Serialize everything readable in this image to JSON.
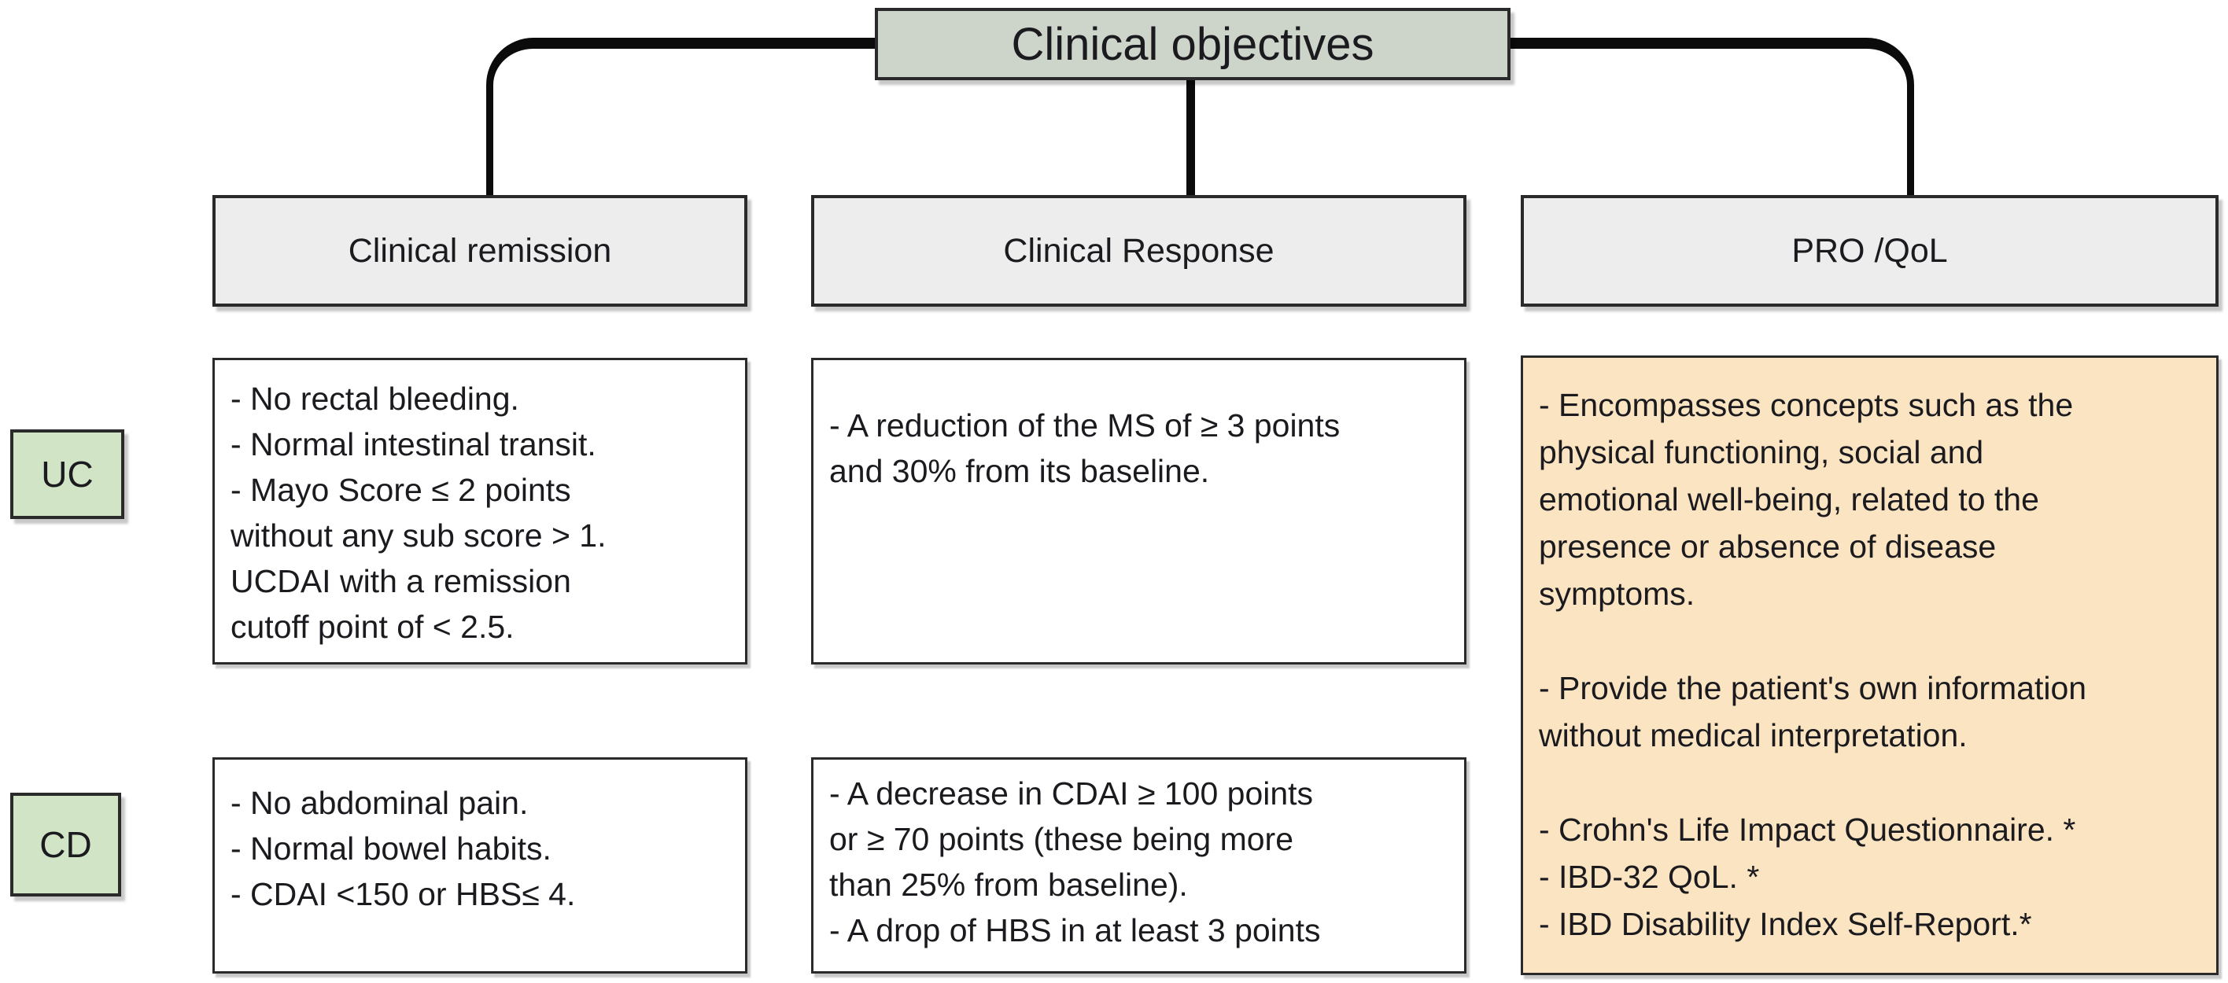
{
  "title": "Clinical objectives",
  "columns": [
    {
      "id": "clinical-remission",
      "label": "Clinical remission"
    },
    {
      "id": "clinical-response",
      "label": "Clinical Response"
    },
    {
      "id": "pro-qol",
      "label": "PRO /QoL"
    }
  ],
  "rows": [
    {
      "id": "uc",
      "label": "UC"
    },
    {
      "id": "cd",
      "label": "CD"
    }
  ],
  "cells": {
    "uc_remission": "- No rectal bleeding.\n- Normal intestinal transit.\n- Mayo Score ≤ 2 points\nwithout any sub score > 1.\nUCDAI with a remission\ncutoff point of < 2.5.",
    "uc_response": "- A reduction of the MS of ≥ 3 points\nand 30% from its baseline.",
    "cd_remission": "- No abdominal pain.\n- Normal bowel habits.\n- CDAI <150 or HBS≤ 4.",
    "cd_response": "- A decrease in CDAI ≥ 100 points\nor ≥ 70 points (these being more\nthan 25% from baseline).\n- A drop of HBS in at least 3 points",
    "pro_qol": "- Encompasses concepts such as the\nphysical functioning, social and\nemotional well-being, related to the\npresence or absence of disease\nsymptoms.\n\n- Provide the patient's own information\nwithout medical interpretation.\n\n- Crohn's Life Impact Questionnaire. *\n- IBD-32 QoL. *\n- IBD Disability Index Self-Report.*"
  },
  "colors": {
    "title_fill": "#cdd4ca",
    "header_fill": "#ededed",
    "row_label_fill": "#d2e4c6",
    "pro_qol_fill": "#fbe4c1",
    "border": "#2a2a2a",
    "connector": "#0b0b0b",
    "text": "#1b1b1f"
  }
}
